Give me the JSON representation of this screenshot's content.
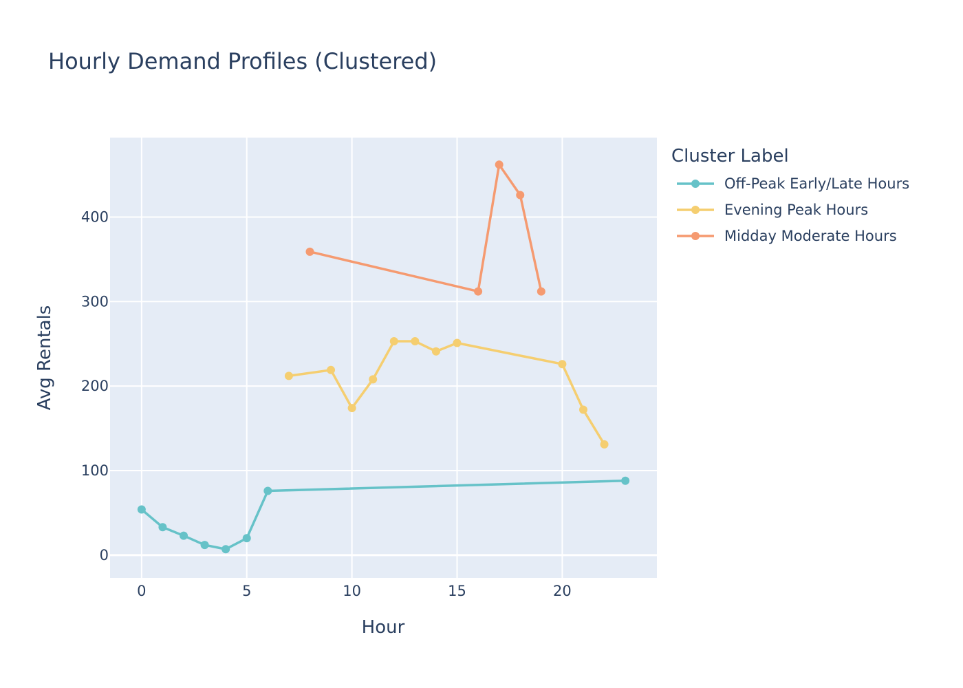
{
  "chart_data": {
    "type": "line",
    "title": "Hourly Demand Profiles (Clustered)",
    "xlabel": "Hour",
    "ylabel": "Avg Rentals",
    "xlim": [
      -1.5,
      24.5
    ],
    "ylim": [
      -27,
      494
    ],
    "xticks": [
      0,
      5,
      10,
      15,
      20
    ],
    "yticks": [
      0,
      100,
      200,
      300,
      400
    ],
    "grid": true,
    "legend_title": "Cluster Label",
    "legend_position": "right",
    "series": [
      {
        "name": "Off-Peak Early/Late Hours",
        "color": "#66c2c8",
        "x": [
          0,
          1,
          2,
          3,
          4,
          5,
          6,
          23
        ],
        "y": [
          54,
          33,
          23,
          12,
          7,
          20,
          76,
          88
        ]
      },
      {
        "name": "Evening Peak Hours",
        "color": "#f5ce70",
        "x": [
          7,
          9,
          10,
          11,
          12,
          13,
          14,
          15,
          20,
          21,
          22
        ],
        "y": [
          212,
          219,
          174,
          208,
          253,
          253,
          241,
          251,
          226,
          172,
          131
        ]
      },
      {
        "name": "Midday Moderate Hours",
        "color": "#f59a70",
        "x": [
          8,
          16,
          17,
          18,
          19
        ],
        "y": [
          359,
          312,
          462,
          426,
          312
        ]
      }
    ]
  }
}
